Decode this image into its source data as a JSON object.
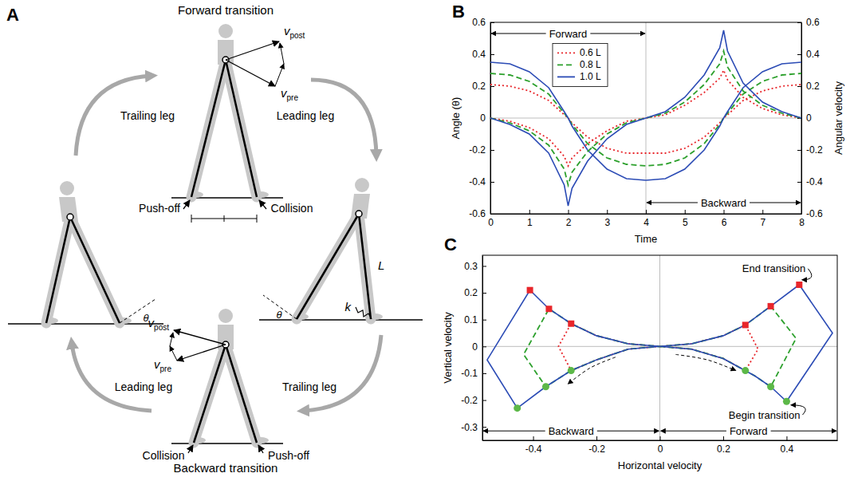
{
  "diagram": {
    "panel": "A",
    "forward": {
      "title": "Forward transition",
      "trailing_leg": "Trailing leg",
      "leading_leg": "Leading leg",
      "push_off": "Push-off",
      "collision": "Collision",
      "v_post": [
        "v",
        "post"
      ],
      "v_pre": [
        "v",
        "pre"
      ]
    },
    "backward": {
      "title": "Backward transition",
      "trailing_leg": "Trailing leg",
      "leading_leg": "Leading leg",
      "push_off": "Push-off",
      "collision": "Collision",
      "v_post": [
        "v",
        "post"
      ],
      "v_pre": [
        "v",
        "pre"
      ]
    },
    "stance_right": {
      "angle": "θ",
      "leg_length": "L",
      "stiffness": "k"
    },
    "stance_left": {
      "angle": "θ"
    }
  },
  "chart_data": [
    {
      "type": "line",
      "panel": "B",
      "xlabel": "Time",
      "ylabel": "Angle (θ)",
      "y2label": "Angular velocity",
      "x": [
        0,
        0.5,
        1,
        1.5,
        1.9,
        2,
        2.1,
        2.5,
        3,
        3.5,
        4,
        4.5,
        5,
        5.5,
        5.9,
        6,
        6.1,
        6.5,
        7,
        7.5,
        8
      ],
      "xlim": [
        0,
        8
      ],
      "xticks": [
        0,
        1,
        2,
        3,
        4,
        5,
        6,
        7,
        8
      ],
      "ylim": [
        -0.6,
        0.6
      ],
      "yticks": [
        -0.6,
        -0.4,
        -0.2,
        0,
        0.2,
        0.4,
        0.6
      ],
      "y2lim": [
        -0.6,
        0.6
      ],
      "y2ticks": [
        -0.6,
        -0.4,
        -0.2,
        0,
        0.2,
        0.4,
        0.6
      ],
      "legend": "upper left",
      "series": [
        {
          "name": "0.6 L",
          "color": "#e8262b",
          "line_style": "dotted",
          "values": [
            0.21,
            0.2,
            0.17,
            0.11,
            0.02,
            0,
            -0.03,
            -0.12,
            -0.19,
            -0.22,
            -0.22,
            -0.22,
            -0.19,
            -0.12,
            -0.03,
            0,
            0.02,
            0.11,
            0.17,
            0.2,
            0.21
          ]
        },
        {
          "name": "0.8 L",
          "color": "#2ca02c",
          "line_style": "dashed",
          "values": [
            0.28,
            0.27,
            0.23,
            0.15,
            0.03,
            0,
            -0.04,
            -0.16,
            -0.25,
            -0.29,
            -0.3,
            -0.29,
            -0.25,
            -0.16,
            -0.04,
            0,
            0.03,
            0.15,
            0.23,
            0.27,
            0.28
          ]
        },
        {
          "name": "1.0 L",
          "color": "#2b4bb5",
          "line_style": "solid",
          "values": [
            0.35,
            0.34,
            0.29,
            0.19,
            0.04,
            0,
            -0.05,
            -0.2,
            -0.32,
            -0.38,
            -0.39,
            -0.38,
            -0.32,
            -0.2,
            -0.05,
            0,
            0.04,
            0.19,
            0.29,
            0.34,
            0.35
          ]
        },
        {
          "name": "0.6 L",
          "color": "#e8262b",
          "line_style": "dotted",
          "axis": "y2",
          "values": [
            0,
            -0.02,
            -0.06,
            -0.13,
            -0.24,
            -0.3,
            -0.25,
            -0.16,
            -0.08,
            -0.02,
            0,
            0.02,
            0.08,
            0.16,
            0.25,
            0.3,
            0.24,
            0.13,
            0.06,
            0.02,
            0
          ]
        },
        {
          "name": "0.8 L",
          "color": "#2ca02c",
          "line_style": "dashed",
          "axis": "y2",
          "values": [
            0,
            -0.03,
            -0.08,
            -0.17,
            -0.32,
            -0.42,
            -0.34,
            -0.21,
            -0.1,
            -0.03,
            0,
            0.03,
            0.1,
            0.21,
            0.34,
            0.42,
            0.32,
            0.17,
            0.08,
            0.03,
            0
          ]
        },
        {
          "name": "1.0 L",
          "color": "#2b4bb5",
          "line_style": "solid",
          "axis": "y2",
          "values": [
            0,
            -0.04,
            -0.1,
            -0.22,
            -0.42,
            -0.55,
            -0.44,
            -0.27,
            -0.13,
            -0.04,
            0,
            0.04,
            0.13,
            0.27,
            0.44,
            0.55,
            0.42,
            0.22,
            0.1,
            0.04,
            0
          ]
        }
      ],
      "annotations": [
        {
          "text": "Forward",
          "x": [
            0,
            4
          ],
          "y": 0.53
        },
        {
          "text": "Backward",
          "x": [
            4,
            8
          ],
          "y": -0.53
        }
      ],
      "reference_lines": [
        {
          "axis": "x",
          "value": 4
        },
        {
          "axis": "y",
          "value": 0
        }
      ]
    },
    {
      "type": "line",
      "panel": "C",
      "xlabel": "Horizontal velocity",
      "ylabel": "Vertical velocity",
      "xlim": [
        -0.56,
        0.56
      ],
      "xticks": [
        -0.4,
        -0.2,
        0,
        0.2,
        0.4
      ],
      "ylim": [
        -0.35,
        0.34
      ],
      "yticks": [
        -0.3,
        -0.2,
        -0.1,
        0,
        0.1,
        0.2,
        0.3
      ],
      "series": [
        {
          "color": "#e8262b",
          "line_style": "dotted",
          "x": [
            0,
            0.1,
            0.2,
            0.27,
            0.31,
            0.27,
            0.2,
            0.1,
            0,
            -0.1,
            -0.2,
            -0.28,
            -0.32,
            -0.28,
            -0.2,
            -0.1,
            0
          ],
          "values": [
            0,
            -0.01,
            -0.045,
            -0.09,
            -0.01,
            0.08,
            0.04,
            0.01,
            0,
            -0.01,
            -0.05,
            -0.09,
            0,
            0.085,
            0.04,
            0.01,
            0
          ]
        },
        {
          "color": "#2ca02c",
          "line_style": "dashed",
          "x": [
            0,
            0.1,
            0.2,
            0.3,
            0.35,
            0.43,
            0.35,
            0.27,
            0.2,
            0.1,
            0,
            -0.1,
            -0.2,
            -0.28,
            -0.36,
            -0.43,
            -0.35,
            -0.28,
            -0.2,
            -0.1,
            0
          ],
          "values": [
            0,
            -0.01,
            -0.045,
            -0.11,
            -0.15,
            0.03,
            0.15,
            0.08,
            0.04,
            0.01,
            0,
            -0.01,
            -0.05,
            -0.09,
            -0.15,
            -0.03,
            0.14,
            0.085,
            0.04,
            0.01,
            0
          ]
        },
        {
          "color": "#2b4bb5",
          "line_style": "solid",
          "x": [
            0,
            0.1,
            0.2,
            0.3,
            0.35,
            0.4,
            0.545,
            0.44,
            0.35,
            0.27,
            0.2,
            0.1,
            0,
            -0.1,
            -0.2,
            -0.28,
            -0.36,
            -0.45,
            -0.545,
            -0.41,
            -0.35,
            -0.28,
            -0.2,
            -0.1,
            0
          ],
          "values": [
            0,
            -0.01,
            -0.045,
            -0.11,
            -0.15,
            -0.205,
            0.05,
            0.23,
            0.15,
            0.08,
            0.04,
            0.01,
            0,
            -0.01,
            -0.05,
            -0.09,
            -0.15,
            -0.23,
            -0.05,
            0.21,
            0.14,
            0.085,
            0.04,
            0.01,
            0
          ]
        },
        {
          "type": "scatter",
          "marker": "square",
          "color": "#e8262b",
          "x": [
            0.27,
            0.35,
            0.44,
            -0.28,
            -0.35,
            -0.41
          ],
          "values": [
            0.08,
            0.15,
            0.23,
            0.085,
            0.14,
            0.21
          ]
        },
        {
          "type": "scatter",
          "marker": "circle",
          "color": "#5cb848",
          "x": [
            0.27,
            0.35,
            0.4,
            -0.28,
            -0.36,
            -0.45
          ],
          "values": [
            -0.09,
            -0.15,
            -0.205,
            -0.09,
            -0.15,
            -0.23
          ]
        }
      ],
      "annotations": [
        {
          "text": "Backward",
          "x": [
            -0.56,
            0
          ],
          "y": -0.315
        },
        {
          "text": "Forward",
          "x": [
            0,
            0.56
          ],
          "y": -0.315
        },
        {
          "text": "End transition",
          "x": 0.36,
          "y": 0.29,
          "target": [
            0.44,
            0.23
          ]
        },
        {
          "text": "Begin transition",
          "x": 0.33,
          "y": -0.255,
          "target": [
            0.4,
            -0.205
          ]
        }
      ],
      "arrows": [
        {
          "x": [
            0.05,
            0.15,
            0.24
          ],
          "y": [
            -0.03,
            -0.05,
            -0.09
          ]
        },
        {
          "x": [
            -0.14,
            -0.22,
            -0.29
          ],
          "y": [
            -0.04,
            -0.08,
            -0.14
          ]
        }
      ],
      "reference_lines": [
        {
          "axis": "x",
          "value": 0
        },
        {
          "axis": "y",
          "value": 0
        }
      ]
    }
  ]
}
